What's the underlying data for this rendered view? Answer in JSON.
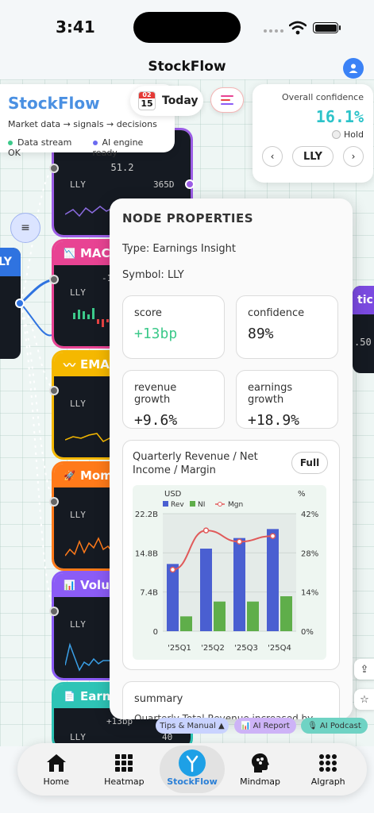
{
  "status": {
    "time": "3:41"
  },
  "app": {
    "title": "StockFlow"
  },
  "brand": {
    "name": "StockFlow",
    "tagline": "Market data → signals → decisions",
    "stream_status": "Data stream OK",
    "ai_status": "AI engine ready",
    "stream_color": "#3cc98a",
    "ai_color": "#6b6bf0"
  },
  "today": {
    "label": "Today",
    "cal_month": "02",
    "cal_day": "15"
  },
  "confidence": {
    "label": "Overall confidence",
    "value": "16.1%",
    "stance": "Hold",
    "symbol": "LLY",
    "prev": "‹",
    "next": "›"
  },
  "nodes": {
    "top_value": "51.2",
    "top_symbol": "LLY",
    "top_range": "365D",
    "macd_label": "MAC",
    "macd_symbol": "LLY",
    "macd_value": "-1",
    "ema_label": "EMA",
    "ema_symbol": "LLY",
    "mom_label": "Mom",
    "mom_symbol": "LLY",
    "vol_label": "Volu",
    "vol_symbol": "LLY",
    "earn_label": "Earn",
    "earn_value": "+13bp",
    "earn_symbol": "LLY",
    "earn_count": "40",
    "left_label": "LY",
    "right_label": "tic F",
    "right_value": ".50"
  },
  "properties": {
    "title": "NODE PROPERTIES",
    "type_line": "Type: Earnings Insight",
    "symbol_line": "Symbol: LLY",
    "metrics": [
      {
        "label": "score",
        "value": "+13bp"
      },
      {
        "label": "confidence",
        "value": "89%"
      },
      {
        "label": "revenue growth",
        "value": "+9.6%"
      },
      {
        "label": "earnings growth",
        "value": "+18.9%"
      }
    ],
    "chart_title": "Quarterly Revenue / Net Income / Margin",
    "full_button": "Full",
    "summary_label": "summary",
    "summary_text": "Quarterly Total Revenue increased by"
  },
  "chart_data": {
    "type": "bar",
    "categories": [
      "'25Q1",
      "'25Q2",
      "'25Q3",
      "'25Q4"
    ],
    "series": [
      {
        "name": "Rev",
        "values": [
          12.7,
          15.6,
          17.6,
          19.3
        ],
        "color": "#4a5fd1"
      },
      {
        "name": "NI",
        "values": [
          2.8,
          5.6,
          5.6,
          6.6
        ],
        "color": "#5fae4a"
      },
      {
        "name": "Mgn",
        "values": [
          22,
          36,
          32,
          34
        ],
        "color": "#e05a5a",
        "axis": "right"
      }
    ],
    "ylabel": "USD",
    "ylabel_right": "%",
    "yticks": [
      "0",
      "7.4B",
      "14.8B",
      "22.2B"
    ],
    "yticks_right": [
      "0%",
      "14%",
      "28%",
      "42%"
    ],
    "ylim": [
      0,
      22.2
    ],
    "ylim_right": [
      0,
      42
    ],
    "legend": "top-left",
    "grid": true
  },
  "chips": {
    "tips": "Tips & Manual ▲",
    "report": "AI Report",
    "podcast": "AI Podcast"
  },
  "tabs": [
    {
      "label": "Home"
    },
    {
      "label": "Heatmap"
    },
    {
      "label": "StockFlow"
    },
    {
      "label": "Mindmap"
    },
    {
      "label": "AIgraph"
    }
  ]
}
